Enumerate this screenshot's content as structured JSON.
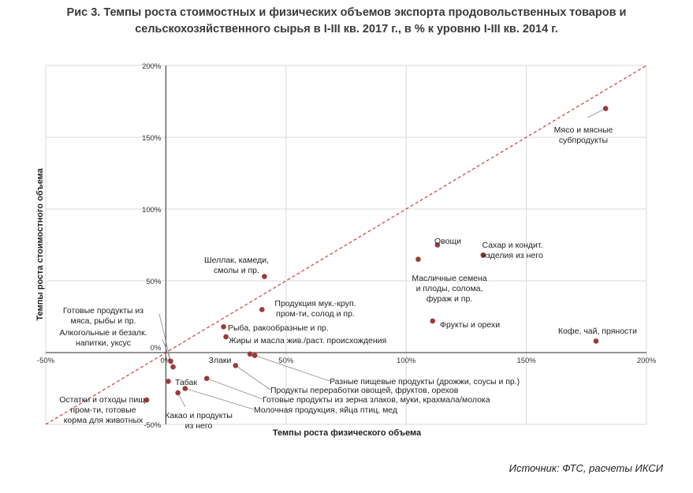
{
  "title_line1": "Рис 3. Темпы роста стоимостных и физических объемов экспорта продовольственных товаров и",
  "title_line2": "сельскохозяйственного сырья в I-III кв. 2017 г., в % к уровню I-III кв. 2014 г.",
  "source": "Источник: ФТС, расчеты ИКСИ",
  "colors": {
    "point": "#9a3b3b",
    "diagonal": "#d33b3b",
    "grid": "#d9d9d9",
    "axis": "#555555",
    "leader": "#8c8c8c"
  },
  "chart_data": {
    "type": "scatter",
    "xlabel": "Темпы роста физического объема",
    "ylabel": "Темпы роста стоимостного объема",
    "xlim": [
      -50,
      200
    ],
    "ylim": [
      -50,
      200
    ],
    "x_ticks": [
      -50,
      0,
      50,
      100,
      150,
      200
    ],
    "y_ticks": [
      -50,
      0,
      50,
      100,
      150,
      200
    ],
    "x_tick_labels": [
      "-50%",
      "0%",
      "50%",
      "100%",
      "150%",
      "200%"
    ],
    "y_tick_labels": [
      "-50%",
      "0%",
      "50%",
      "100%",
      "150%",
      "200%"
    ],
    "reference_line": "y = x",
    "points": [
      {
        "name": "Мясо и мясные субпродукты",
        "lines": [
          "Мясо и мясные",
          "субпродукты"
        ],
        "x": 183,
        "y": 170
      },
      {
        "name": "Овощи",
        "lines": [
          "Овощи"
        ],
        "x": 113,
        "y": 75
      },
      {
        "name": "Сахар и кондит. изделия из него",
        "lines": [
          "Сахар и кондит.",
          "изделия из него"
        ],
        "x": 132,
        "y": 68
      },
      {
        "name": "Масличные семена и плоды, солома, фураж и пр.",
        "lines": [
          "Масличные семена",
          "и плоды, солома,",
          "фураж и пр."
        ],
        "x": 105,
        "y": 65
      },
      {
        "name": "Фрукты и орехи",
        "lines": [
          "Фрукты и орехи"
        ],
        "x": 111,
        "y": 22
      },
      {
        "name": "Кофе, чай, пряности",
        "lines": [
          "Кофе, чай, пряности"
        ],
        "x": 179,
        "y": 8
      },
      {
        "name": "Шеллак, камеди, смолы и пр.",
        "lines": [
          "Шеллак, камеди,",
          "смолы и пр."
        ],
        "x": 41,
        "y": 53
      },
      {
        "name": "Продукция мук.-круп. пром-ти, солод и пр.",
        "lines": [
          "Продукция мук.-круп.",
          "пром-ти, солод и пр."
        ],
        "x": 40,
        "y": 30
      },
      {
        "name": "Рыба, ракообразные и пр.",
        "lines": [
          "Рыба, ракообразные и пр."
        ],
        "x": 24,
        "y": 18
      },
      {
        "name": "Жиры и масла жив./раст. происхождения",
        "lines": [
          "Жиры и масла жив./раст. происхождения"
        ],
        "x": 25,
        "y": 11
      },
      {
        "name": "Злаки",
        "lines": [
          "Злаки"
        ],
        "x": 35,
        "y": -1
      },
      {
        "name": "Разные пищевые продукты (дрожжи, соусы и пр.)",
        "lines": [
          "Разные пищевые продукты (дрожжи, соусы и пр.)"
        ],
        "x": 37,
        "y": -2
      },
      {
        "name": "Продукты переработки овощей, фруктов, орехов",
        "lines": [
          "Продукты переработки овощей, фруктов, орехов"
        ],
        "x": 29,
        "y": -9
      },
      {
        "name": "Готовые продукты из зерна злаков, муки, крахмала/молока",
        "lines": [
          "Готовые продукты из зерна злаков, муки, крахмала/молока"
        ],
        "x": 17,
        "y": -18
      },
      {
        "name": "Молочная продукция, яйца птиц, мед",
        "lines": [
          "Молочная продукция, яйца птиц, мед"
        ],
        "x": 8,
        "y": -25
      },
      {
        "name": "Табак",
        "lines": [
          "Табак"
        ],
        "x": 1,
        "y": -20
      },
      {
        "name": "Какао и продукты из него",
        "lines": [
          "Какао и продукты",
          "из него"
        ],
        "x": 5,
        "y": -28
      },
      {
        "name": "Готовые продукты из мяса, рыбы и пр.",
        "lines": [
          "Готовые продукты из",
          "мяса, рыбы и пр."
        ],
        "x": 2,
        "y": -6
      },
      {
        "name": "Алкогольные и безалк. напитки, уксус",
        "lines": [
          "Алкогольные и безалк.",
          "напитки, уксус"
        ],
        "x": 3,
        "y": -10
      },
      {
        "name": "Остатки и отходы пищ. пром-ти, готовые корма для животных",
        "lines": [
          "Остатки и отходы пищ.",
          "пром-ти, готовые",
          "корма для животных"
        ],
        "x": -8,
        "y": -33
      }
    ]
  }
}
